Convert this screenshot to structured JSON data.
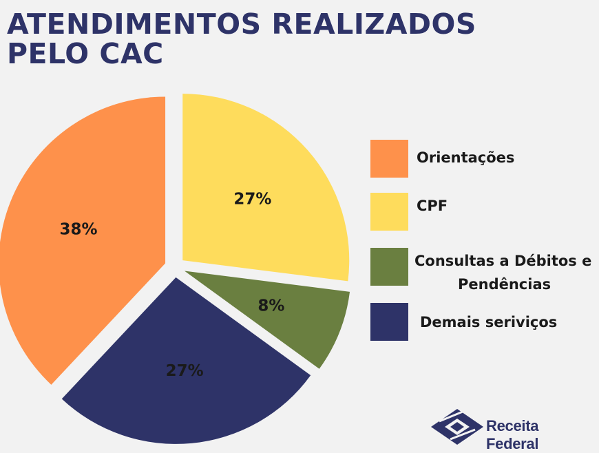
{
  "title": "ATENDIMENTOS REALIZADOS PELO CAC",
  "chart_data": {
    "type": "pie",
    "title": "ATENDIMENTOS REALIZADOS PELO CAC",
    "slices": [
      {
        "label": "CPF",
        "value": 27,
        "display": "27%",
        "color": "#fedc5c"
      },
      {
        "label": "Consultas a Débitos e Pendências",
        "value": 8,
        "display": "8%",
        "color": "#6a7f40"
      },
      {
        "label": "Demais seriviços",
        "value": 27,
        "display": "27%",
        "color": "#2e3368"
      },
      {
        "label": "Orientações",
        "value": 38,
        "display": "38%",
        "color": "#fe914b"
      }
    ],
    "legend_order": [
      "Orientações",
      "CPF",
      "Consultas a Débitos e Pendências",
      "Demais seriviços"
    ],
    "legend_position": "right"
  },
  "legend": {
    "orientacoes": "Orientações",
    "cpf": "CPF",
    "consultas_line1": "Consultas a Débitos e",
    "consultas_line2": "Pendências",
    "demais": "Demais seriviços"
  },
  "logo": {
    "text": "Receita Federal",
    "icon": "receita-federal-logo-icon",
    "color": "#2e3368"
  }
}
